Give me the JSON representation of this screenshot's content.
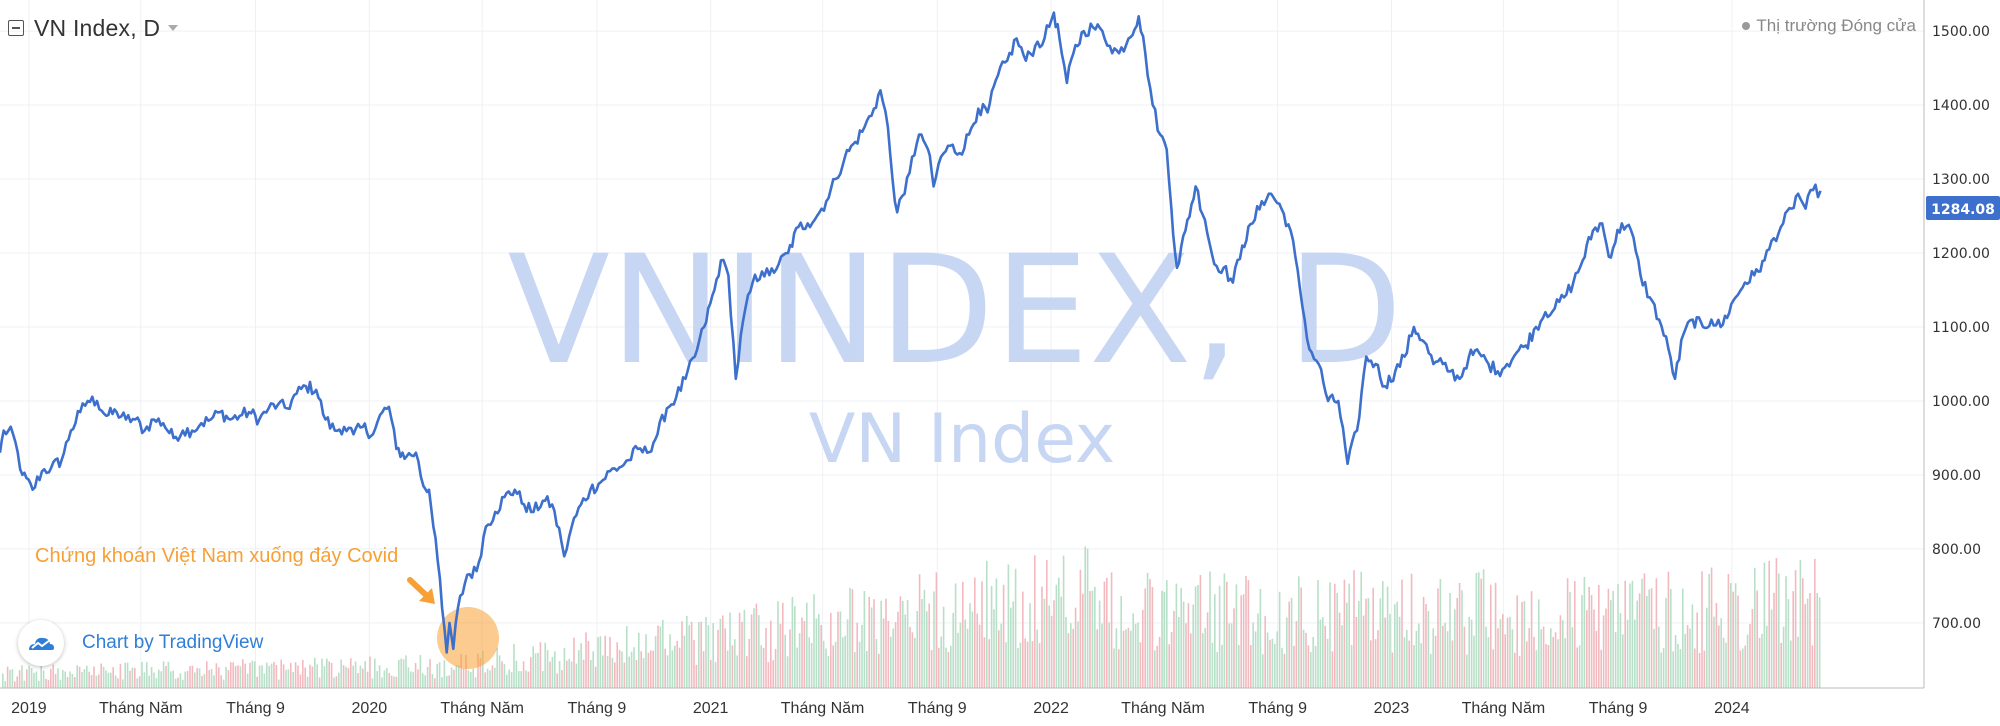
{
  "header": {
    "title": "VN Index, D",
    "market_status": "Thị trường Đóng cửa"
  },
  "watermark": {
    "main": "VNINDEX, D",
    "sub": "VN Index"
  },
  "annotation": {
    "text": "Chứng khoán Việt Nam xuống đáy Covid",
    "color": "#f7a035"
  },
  "badge": {
    "text": "Chart by TradingView"
  },
  "colors": {
    "line": "#3d6fcc",
    "watermark": "#c6d6f3",
    "last_price_bg": "#3d6fcc",
    "volume_up": "#b8dfc8",
    "volume_down": "#f2b9bf",
    "grid": "#eef0f3",
    "axis_text": "#333333",
    "highlight": "#f7a035"
  },
  "chart_data": {
    "type": "line",
    "title": "VN Index, D",
    "last_price": "1284.08",
    "y_ticks": [
      "700.00",
      "800.00",
      "900.00",
      "1000.00",
      "1100.00",
      "1200.00",
      "1300.00",
      "1400.00",
      "1500.00"
    ],
    "x_ticks": [
      "2019",
      "Tháng Năm",
      "Tháng 9",
      "2020",
      "Tháng Năm",
      "Tháng 9",
      "2021",
      "Tháng Năm",
      "Tháng 9",
      "2022",
      "Tháng Năm",
      "Tháng 9",
      "2023",
      "Tháng Năm",
      "Tháng 9",
      "2024"
    ],
    "ylim": [
      612,
      1542
    ],
    "xlim": [
      "2018-12-01",
      "2024-07-25"
    ],
    "grid": true,
    "series": [
      {
        "values": [
          {
            "x": "2018-12-01",
            "y": 930
          },
          {
            "x": "2018-12-05",
            "y": 960
          },
          {
            "x": "2018-12-15",
            "y": 955
          },
          {
            "x": "2018-12-25",
            "y": 900
          },
          {
            "x": "2019-01-05",
            "y": 880
          },
          {
            "x": "2019-01-15",
            "y": 905
          },
          {
            "x": "2019-01-25",
            "y": 910
          },
          {
            "x": "2019-02-05",
            "y": 920
          },
          {
            "x": "2019-02-15",
            "y": 960
          },
          {
            "x": "2019-02-25",
            "y": 985
          },
          {
            "x": "2019-03-05",
            "y": 1000
          },
          {
            "x": "2019-03-15",
            "y": 1000
          },
          {
            "x": "2019-03-25",
            "y": 980
          },
          {
            "x": "2019-04-05",
            "y": 985
          },
          {
            "x": "2019-04-15",
            "y": 975
          },
          {
            "x": "2019-04-25",
            "y": 975
          },
          {
            "x": "2019-05-05",
            "y": 960
          },
          {
            "x": "2019-05-15",
            "y": 975
          },
          {
            "x": "2019-05-25",
            "y": 970
          },
          {
            "x": "2019-06-05",
            "y": 950
          },
          {
            "x": "2019-06-15",
            "y": 960
          },
          {
            "x": "2019-06-25",
            "y": 960
          },
          {
            "x": "2019-07-05",
            "y": 970
          },
          {
            "x": "2019-07-15",
            "y": 975
          },
          {
            "x": "2019-07-25",
            "y": 985
          },
          {
            "x": "2019-08-05",
            "y": 975
          },
          {
            "x": "2019-08-15",
            "y": 980
          },
          {
            "x": "2019-08-25",
            "y": 985
          },
          {
            "x": "2019-09-05",
            "y": 975
          },
          {
            "x": "2019-09-15",
            "y": 990
          },
          {
            "x": "2019-09-25",
            "y": 995
          },
          {
            "x": "2019-10-05",
            "y": 990
          },
          {
            "x": "2019-10-15",
            "y": 1010
          },
          {
            "x": "2019-10-25",
            "y": 1020
          },
          {
            "x": "2019-11-05",
            "y": 1015
          },
          {
            "x": "2019-11-15",
            "y": 975
          },
          {
            "x": "2019-11-25",
            "y": 960
          },
          {
            "x": "2019-12-05",
            "y": 965
          },
          {
            "x": "2019-12-15",
            "y": 955
          },
          {
            "x": "2019-12-25",
            "y": 965
          },
          {
            "x": "2020-01-05",
            "y": 955
          },
          {
            "x": "2020-01-15",
            "y": 985
          },
          {
            "x": "2020-01-22",
            "y": 992
          },
          {
            "x": "2020-01-30",
            "y": 935
          },
          {
            "x": "2020-02-10",
            "y": 925
          },
          {
            "x": "2020-02-20",
            "y": 930
          },
          {
            "x": "2020-02-28",
            "y": 885
          },
          {
            "x": "2020-03-05",
            "y": 880
          },
          {
            "x": "2020-03-12",
            "y": 815
          },
          {
            "x": "2020-03-19",
            "y": 720
          },
          {
            "x": "2020-03-24",
            "y": 660
          },
          {
            "x": "2020-03-27",
            "y": 700
          },
          {
            "x": "2020-03-31",
            "y": 665
          },
          {
            "x": "2020-04-05",
            "y": 720
          },
          {
            "x": "2020-04-15",
            "y": 765
          },
          {
            "x": "2020-04-25",
            "y": 770
          },
          {
            "x": "2020-05-05",
            "y": 830
          },
          {
            "x": "2020-05-15",
            "y": 850
          },
          {
            "x": "2020-05-25",
            "y": 870
          },
          {
            "x": "2020-06-05",
            "y": 880
          },
          {
            "x": "2020-06-15",
            "y": 860
          },
          {
            "x": "2020-06-25",
            "y": 850
          },
          {
            "x": "2020-07-05",
            "y": 865
          },
          {
            "x": "2020-07-15",
            "y": 860
          },
          {
            "x": "2020-07-25",
            "y": 810
          },
          {
            "x": "2020-07-28",
            "y": 790
          },
          {
            "x": "2020-08-05",
            "y": 830
          },
          {
            "x": "2020-08-15",
            "y": 860
          },
          {
            "x": "2020-08-25",
            "y": 880
          },
          {
            "x": "2020-09-05",
            "y": 890
          },
          {
            "x": "2020-09-15",
            "y": 905
          },
          {
            "x": "2020-09-25",
            "y": 910
          },
          {
            "x": "2020-10-05",
            "y": 920
          },
          {
            "x": "2020-10-15",
            "y": 935
          },
          {
            "x": "2020-10-25",
            "y": 930
          },
          {
            "x": "2020-11-05",
            "y": 955
          },
          {
            "x": "2020-11-15",
            "y": 990
          },
          {
            "x": "2020-11-25",
            "y": 1005
          },
          {
            "x": "2020-12-05",
            "y": 1030
          },
          {
            "x": "2020-12-15",
            "y": 1060
          },
          {
            "x": "2020-12-25",
            "y": 1100
          },
          {
            "x": "2021-01-05",
            "y": 1150
          },
          {
            "x": "2021-01-12",
            "y": 1190
          },
          {
            "x": "2021-01-20",
            "y": 1170
          },
          {
            "x": "2021-01-28",
            "y": 1030
          },
          {
            "x": "2021-02-05",
            "y": 1110
          },
          {
            "x": "2021-02-15",
            "y": 1160
          },
          {
            "x": "2021-02-25",
            "y": 1175
          },
          {
            "x": "2021-03-05",
            "y": 1170
          },
          {
            "x": "2021-03-15",
            "y": 1185
          },
          {
            "x": "2021-03-25",
            "y": 1200
          },
          {
            "x": "2021-04-05",
            "y": 1235
          },
          {
            "x": "2021-04-15",
            "y": 1240
          },
          {
            "x": "2021-04-25",
            "y": 1250
          },
          {
            "x": "2021-05-05",
            "y": 1270
          },
          {
            "x": "2021-05-15",
            "y": 1300
          },
          {
            "x": "2021-05-25",
            "y": 1330
          },
          {
            "x": "2021-06-05",
            "y": 1350
          },
          {
            "x": "2021-06-15",
            "y": 1370
          },
          {
            "x": "2021-06-25",
            "y": 1395
          },
          {
            "x": "2021-07-02",
            "y": 1420
          },
          {
            "x": "2021-07-10",
            "y": 1370
          },
          {
            "x": "2021-07-15",
            "y": 1300
          },
          {
            "x": "2021-07-20",
            "y": 1255
          },
          {
            "x": "2021-07-28",
            "y": 1280
          },
          {
            "x": "2021-08-05",
            "y": 1330
          },
          {
            "x": "2021-08-15",
            "y": 1360
          },
          {
            "x": "2021-08-22",
            "y": 1340
          },
          {
            "x": "2021-08-28",
            "y": 1290
          },
          {
            "x": "2021-09-05",
            "y": 1330
          },
          {
            "x": "2021-09-15",
            "y": 1345
          },
          {
            "x": "2021-09-25",
            "y": 1335
          },
          {
            "x": "2021-10-05",
            "y": 1360
          },
          {
            "x": "2021-10-15",
            "y": 1395
          },
          {
            "x": "2021-10-25",
            "y": 1390
          },
          {
            "x": "2021-11-05",
            "y": 1440
          },
          {
            "x": "2021-11-15",
            "y": 1460
          },
          {
            "x": "2021-11-25",
            "y": 1490
          },
          {
            "x": "2021-12-05",
            "y": 1460
          },
          {
            "x": "2021-12-15",
            "y": 1480
          },
          {
            "x": "2021-12-25",
            "y": 1490
          },
          {
            "x": "2022-01-04",
            "y": 1525
          },
          {
            "x": "2022-01-10",
            "y": 1490
          },
          {
            "x": "2022-01-18",
            "y": 1430
          },
          {
            "x": "2022-01-25",
            "y": 1470
          },
          {
            "x": "2022-02-05",
            "y": 1500
          },
          {
            "x": "2022-02-15",
            "y": 1505
          },
          {
            "x": "2022-02-25",
            "y": 1500
          },
          {
            "x": "2022-03-05",
            "y": 1480
          },
          {
            "x": "2022-03-15",
            "y": 1470
          },
          {
            "x": "2022-03-25",
            "y": 1490
          },
          {
            "x": "2022-04-05",
            "y": 1520
          },
          {
            "x": "2022-04-12",
            "y": 1470
          },
          {
            "x": "2022-04-20",
            "y": 1400
          },
          {
            "x": "2022-04-28",
            "y": 1360
          },
          {
            "x": "2022-05-05",
            "y": 1340
          },
          {
            "x": "2022-05-10",
            "y": 1260
          },
          {
            "x": "2022-05-16",
            "y": 1180
          },
          {
            "x": "2022-05-25",
            "y": 1230
          },
          {
            "x": "2022-06-05",
            "y": 1290
          },
          {
            "x": "2022-06-15",
            "y": 1245
          },
          {
            "x": "2022-06-25",
            "y": 1185
          },
          {
            "x": "2022-07-05",
            "y": 1180
          },
          {
            "x": "2022-07-15",
            "y": 1160
          },
          {
            "x": "2022-07-25",
            "y": 1210
          },
          {
            "x": "2022-08-05",
            "y": 1240
          },
          {
            "x": "2022-08-15",
            "y": 1270
          },
          {
            "x": "2022-08-25",
            "y": 1280
          },
          {
            "x": "2022-09-05",
            "y": 1260
          },
          {
            "x": "2022-09-15",
            "y": 1230
          },
          {
            "x": "2022-09-25",
            "y": 1150
          },
          {
            "x": "2022-10-05",
            "y": 1070
          },
          {
            "x": "2022-10-15",
            "y": 1050
          },
          {
            "x": "2022-10-25",
            "y": 1000
          },
          {
            "x": "2022-11-05",
            "y": 1000
          },
          {
            "x": "2022-11-15",
            "y": 915
          },
          {
            "x": "2022-11-25",
            "y": 960
          },
          {
            "x": "2022-12-05",
            "y": 1060
          },
          {
            "x": "2022-12-15",
            "y": 1050
          },
          {
            "x": "2022-12-25",
            "y": 1020
          },
          {
            "x": "2023-01-05",
            "y": 1040
          },
          {
            "x": "2023-01-15",
            "y": 1060
          },
          {
            "x": "2023-01-25",
            "y": 1100
          },
          {
            "x": "2023-02-05",
            "y": 1080
          },
          {
            "x": "2023-02-15",
            "y": 1050
          },
          {
            "x": "2023-02-25",
            "y": 1050
          },
          {
            "x": "2023-03-05",
            "y": 1040
          },
          {
            "x": "2023-03-15",
            "y": 1030
          },
          {
            "x": "2023-03-25",
            "y": 1060
          },
          {
            "x": "2023-04-05",
            "y": 1065
          },
          {
            "x": "2023-04-15",
            "y": 1050
          },
          {
            "x": "2023-04-25",
            "y": 1040
          },
          {
            "x": "2023-05-05",
            "y": 1050
          },
          {
            "x": "2023-05-15",
            "y": 1065
          },
          {
            "x": "2023-05-25",
            "y": 1075
          },
          {
            "x": "2023-06-05",
            "y": 1100
          },
          {
            "x": "2023-06-15",
            "y": 1120
          },
          {
            "x": "2023-06-25",
            "y": 1125
          },
          {
            "x": "2023-07-05",
            "y": 1140
          },
          {
            "x": "2023-07-15",
            "y": 1160
          },
          {
            "x": "2023-07-25",
            "y": 1190
          },
          {
            "x": "2023-08-05",
            "y": 1230
          },
          {
            "x": "2023-08-15",
            "y": 1240
          },
          {
            "x": "2023-08-22",
            "y": 1195
          },
          {
            "x": "2023-09-05",
            "y": 1240
          },
          {
            "x": "2023-09-15",
            "y": 1230
          },
          {
            "x": "2023-09-25",
            "y": 1170
          },
          {
            "x": "2023-10-05",
            "y": 1140
          },
          {
            "x": "2023-10-15",
            "y": 1110
          },
          {
            "x": "2023-10-25",
            "y": 1070
          },
          {
            "x": "2023-11-01",
            "y": 1030
          },
          {
            "x": "2023-11-10",
            "y": 1090
          },
          {
            "x": "2023-11-20",
            "y": 1110
          },
          {
            "x": "2023-12-01",
            "y": 1100
          },
          {
            "x": "2023-12-10",
            "y": 1110
          },
          {
            "x": "2023-12-20",
            "y": 1100
          },
          {
            "x": "2024-01-05",
            "y": 1140
          },
          {
            "x": "2024-01-15",
            "y": 1160
          },
          {
            "x": "2024-01-25",
            "y": 1170
          },
          {
            "x": "2024-02-05",
            "y": 1190
          },
          {
            "x": "2024-02-15",
            "y": 1220
          },
          {
            "x": "2024-02-25",
            "y": 1240
          },
          {
            "x": "2024-03-05",
            "y": 1260
          },
          {
            "x": "2024-03-12",
            "y": 1280
          },
          {
            "x": "2024-03-20",
            "y": 1260
          },
          {
            "x": "2024-03-28",
            "y": 1285
          },
          {
            "x": "2024-04-05",
            "y": 1284.08
          }
        ]
      }
    ]
  }
}
